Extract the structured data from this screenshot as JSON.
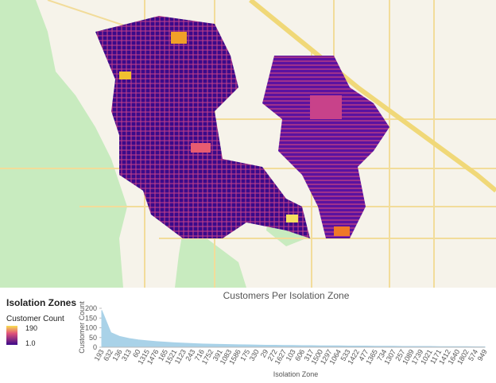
{
  "legend": {
    "title": "Isolation Zones",
    "field": "Customer Count",
    "max_label": "190",
    "min_label": "1.0"
  },
  "chart_data": {
    "type": "area",
    "title": "Customers Per Isolation Zone",
    "y_label": "Customer Count",
    "x_label": "Isolation Zone",
    "color": "#a9d2e8",
    "categories": [
      "193",
      "632",
      "136",
      "313",
      "60",
      "1315",
      "1476",
      "165",
      "1521",
      "1123",
      "243",
      "716",
      "1752",
      "391",
      "1083",
      "1586",
      "175",
      "330",
      "29",
      "272",
      "1627",
      "103",
      "606",
      "317",
      "1500",
      "1297",
      "1064",
      "533",
      "1422",
      "477",
      "1365",
      "734",
      "1307",
      "257",
      "1089",
      "1739",
      "1021",
      "1171",
      "1412",
      "1640",
      "1802",
      "574",
      "949"
    ],
    "values": [
      190,
      75,
      55,
      45,
      38,
      33,
      29,
      26,
      23,
      21,
      19,
      17,
      16,
      15,
      14,
      13,
      12,
      11,
      10,
      10,
      9,
      9,
      8,
      8,
      7,
      7,
      7,
      6,
      6,
      6,
      5,
      5,
      5,
      4,
      4,
      4,
      4,
      3,
      3,
      3,
      3,
      2,
      2
    ],
    "ylim": [
      0,
      200
    ],
    "yticks": [
      0,
      50,
      100,
      150,
      200
    ]
  }
}
